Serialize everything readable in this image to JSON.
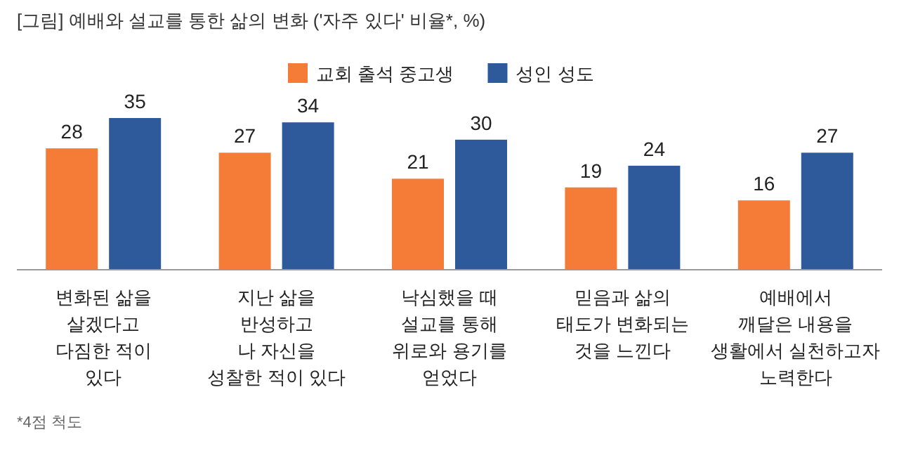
{
  "chart_data": {
    "type": "bar",
    "title": "[그림] 예배와 설교를 통한 삶의 변화 ('자주 있다' 비율*, %)",
    "categories": [
      "변화된 삶을\n살겠다고\n다짐한 적이\n있다",
      "지난 삶을\n반성하고\n나 자신을\n성찰한 적이 있다",
      "낙심했을 때\n설교를 통해\n위로와 용기를\n얻었다",
      "믿음과 삶의\n태도가 변화되는\n것을 느낀다",
      "예배에서\n깨달은 내용을\n생활에서 실천하고자\n노력한다"
    ],
    "series": [
      {
        "name": "교회 출석 중고생",
        "color": "#f47c36",
        "values": [
          28,
          27,
          21,
          19,
          16
        ]
      },
      {
        "name": "성인 성도",
        "color": "#2e5a9c",
        "values": [
          35,
          34,
          30,
          24,
          27
        ]
      }
    ],
    "data_labels": true,
    "legend": "top",
    "annotations": [
      "*4점 척도"
    ]
  }
}
